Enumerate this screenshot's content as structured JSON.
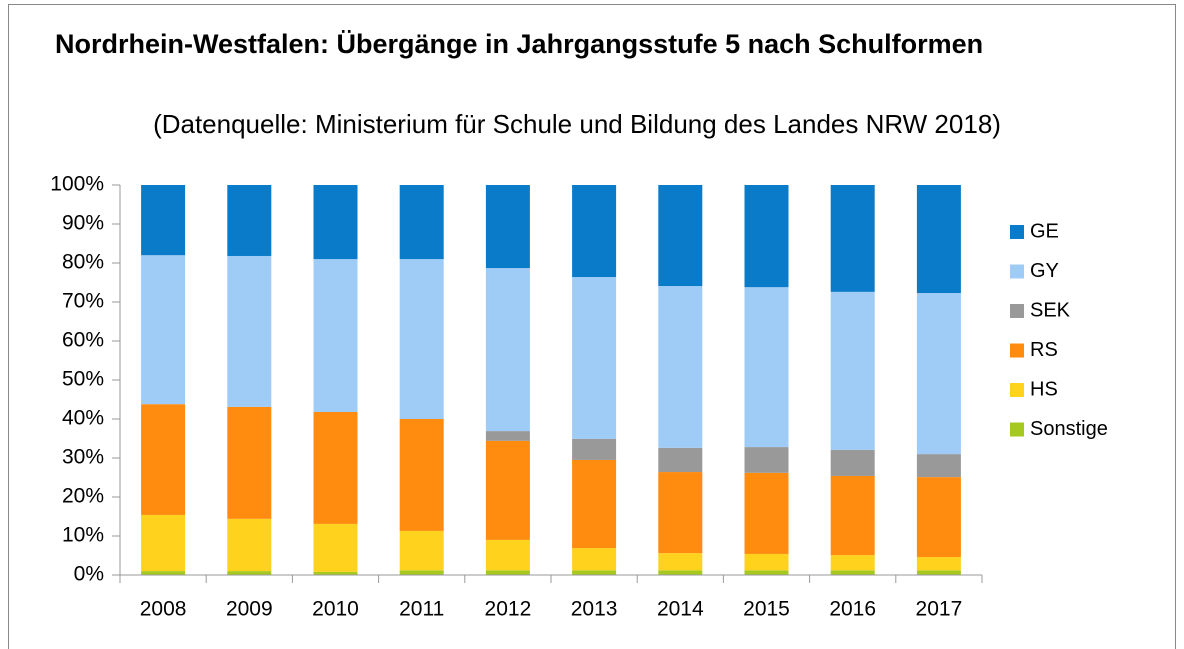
{
  "chart_data": {
    "type": "stacked_bar",
    "title": "Nordrhein-Westfalen: Übergänge in Jahrgangsstufe 5 nach Schulformen",
    "subtitle": "(Datenquelle: Ministerium für Schule und Bildung des Landes NRW 2018)",
    "categories": [
      "2008",
      "2009",
      "2010",
      "2011",
      "2012",
      "2013",
      "2014",
      "2015",
      "2016",
      "2017"
    ],
    "series": [
      {
        "name": "GE",
        "color": "#0a7bc9",
        "values": [
          18,
          18.2,
          19,
          19,
          21.3,
          23.6,
          25.9,
          26.2,
          27.4,
          27.7
        ]
      },
      {
        "name": "GY",
        "color": "#9fcbf7",
        "values": [
          38.2,
          38.7,
          39.2,
          41,
          41.8,
          41.5,
          41.5,
          41,
          40.5,
          41.3
        ]
      },
      {
        "name": "SEK",
        "color": "#999999",
        "values": [
          0,
          0,
          0,
          0,
          2.5,
          5.4,
          6.2,
          6.6,
          6.7,
          5.9
        ]
      },
      {
        "name": "RS",
        "color": "#ff8c0f",
        "values": [
          28.4,
          28.7,
          28.7,
          28.7,
          25.4,
          22.6,
          20.8,
          20.8,
          20.3,
          20.5
        ]
      },
      {
        "name": "HS",
        "color": "#ffd21e",
        "values": [
          14.4,
          13.4,
          12.3,
          10.1,
          7.8,
          5.7,
          4.4,
          4.2,
          3.9,
          3.4
        ]
      },
      {
        "name": "Sonstige",
        "color": "#a6c91f",
        "values": [
          1,
          1,
          0.8,
          1.2,
          1.2,
          1.2,
          1.2,
          1.2,
          1.2,
          1.2
        ]
      }
    ],
    "ylim": [
      0,
      100
    ],
    "yticks": [
      {
        "value": 0,
        "label": "0%"
      },
      {
        "value": 10,
        "label": "10%"
      },
      {
        "value": 20,
        "label": "20%"
      },
      {
        "value": 30,
        "label": "30%"
      },
      {
        "value": 40,
        "label": "40%"
      },
      {
        "value": 50,
        "label": "50%"
      },
      {
        "value": 60,
        "label": "60%"
      },
      {
        "value": 70,
        "label": "70%"
      },
      {
        "value": 80,
        "label": "80%"
      },
      {
        "value": 90,
        "label": "90%"
      },
      {
        "value": 100,
        "label": "100%"
      }
    ],
    "grid": false,
    "legend": "right"
  }
}
